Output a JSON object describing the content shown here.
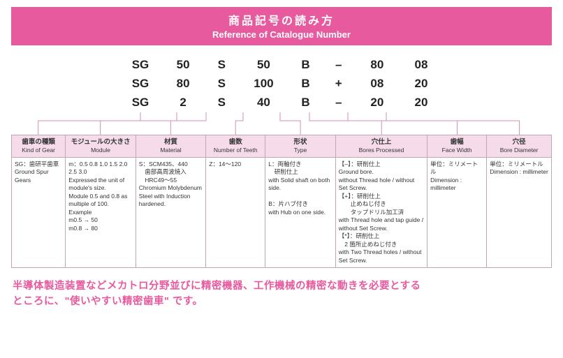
{
  "header": {
    "jp": "商品記号の読み方",
    "en": "Reference of Catalogue Number"
  },
  "codes": {
    "rows": [
      [
        "SG",
        "50",
        "S",
        "50",
        "B",
        "–",
        "80",
        "08"
      ],
      [
        "SG",
        "80",
        "S",
        "100",
        "B",
        "+",
        "08",
        "20"
      ],
      [
        "SG",
        "2",
        "S",
        "40",
        "B",
        "–",
        "20",
        "20"
      ]
    ]
  },
  "columns": [
    {
      "jp": "歯車の種類",
      "en": "Kind of Gear",
      "body": "SG：歯研平歯車\nGround Spur Gears"
    },
    {
      "jp": "モジュールの大きさ",
      "en": "Module",
      "body": "m：0.5 0.8 1.0 1.5 2.0 2.5 3.0\nExpressed the unit of module's size.\nModule 0.5 and 0.8 as multiple of 100.\nExample\nm0.5 → 50\nm0.8 → 80"
    },
    {
      "jp": "材質",
      "en": "Material",
      "body": "S：SCM435、440\n　歯部高周波焼入\n　HRC49～55\nChromium Molybdenum Steel with Induction hardened."
    },
    {
      "jp": "歯数",
      "en": "Number of Teeth",
      "body": "Z：14～120"
    },
    {
      "jp": "形状",
      "en": "Type",
      "body": "L：両軸付き\n　研削仕上\nwith Solid shaft on both side.\n\nB：片ハブ付き\nwith Hub on one side."
    },
    {
      "jp": "穴仕上",
      "en": "Bores Processed",
      "body": "【–】：研削仕上\nGround bore.\nwithout Thread hole / without Set Screw.\n【+】：研削仕上\n　　止めねじ付き\n　　タップドリル加工済\nwith Thread hole and tap guide / without Set Screw.\n【*】：研削仕上\n　2 箇所止めねじ付き\nwith Two Thread holes / without Set Screw."
    },
    {
      "jp": "歯幅",
      "en": "Face Width",
      "body": "単位：ミリメートル\nDimension : millimeter"
    },
    {
      "jp": "穴径",
      "en": "Bore Diameter",
      "body": "単位：ミリメートル\nDimension : millimeter"
    }
  ],
  "footer": {
    "line1": "半導体製造装置などメカトロ分野並びに精密機器、工作機械の精密な動きを必要とする",
    "line2": "ところに、\"使いやすい精密歯車\" です。"
  },
  "style": {
    "accent": "#e85a9e",
    "th_bg": "#f6dceb",
    "border": "#bfa8b5",
    "connector": "#d08fb4"
  }
}
